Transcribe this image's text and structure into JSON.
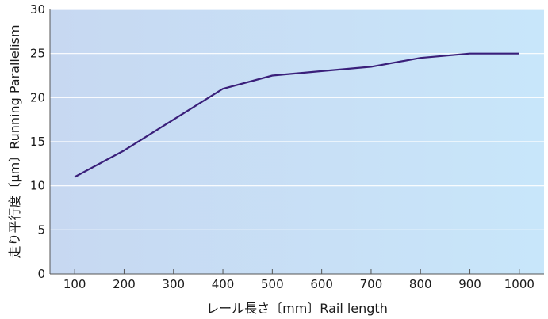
{
  "chart_data": {
    "type": "line",
    "title": "",
    "xlabel": "レール長さ〔mm〕Rail length",
    "ylabel": "走り平行度〔μm〕Running Parallelism",
    "x": [
      100,
      200,
      400,
      500,
      600,
      700,
      800,
      900,
      1000
    ],
    "series": [
      {
        "name": "",
        "values": [
          11,
          14,
          21,
          22.5,
          23,
          23.5,
          24.5,
          25,
          25
        ]
      }
    ],
    "xlim": [
      50,
      1050
    ],
    "ylim": [
      0,
      30
    ],
    "xticks": [
      100,
      200,
      300,
      400,
      500,
      600,
      700,
      800,
      900,
      1000
    ],
    "yticks": [
      0,
      5,
      10,
      15,
      20,
      25,
      30
    ],
    "grid": true,
    "legend": "none",
    "colors": {
      "line": "#3a1f7a",
      "bg_left": "#c7d8f1",
      "bg_right": "#c8e6fa",
      "grid": "#ffffff",
      "axis": "#555555"
    }
  }
}
